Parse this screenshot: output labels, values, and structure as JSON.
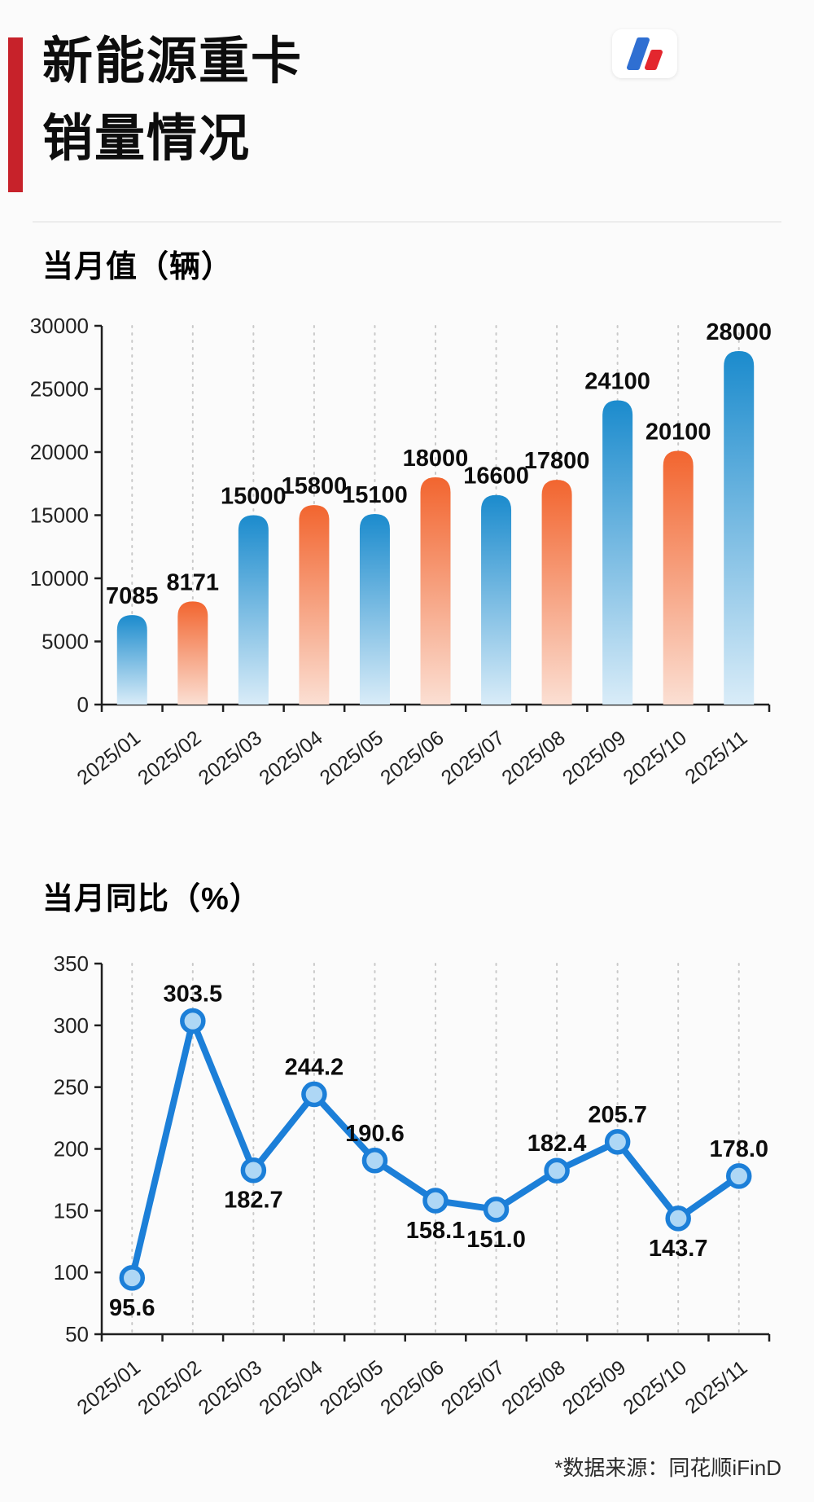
{
  "header": {
    "title_line1": "新能源重卡",
    "title_line2": "销量情况",
    "logo": "tonghuashun-ifind-logo"
  },
  "charts": {
    "bar_title": "当月值（辆）",
    "line_title": "当月同比（%）"
  },
  "footer": {
    "source": "*数据来源：同花顺iFinD"
  },
  "colors": {
    "accent_red": "#c7222a",
    "bar_blue_top": "#1b8bcd",
    "bar_blue_bottom": "#d9ecf8",
    "bar_orange_top": "#f2652f",
    "bar_orange_bottom": "#fbdfd3",
    "line_blue": "#1c7fd8",
    "marker_fill": "#aed7f5",
    "logo_blue": "#2f6fd2",
    "logo_red": "#e3272e"
  },
  "chart_data": [
    {
      "type": "bar",
      "title": "当月值（辆）",
      "categories": [
        "2025/01",
        "2025/02",
        "2025/03",
        "2025/04",
        "2025/05",
        "2025/06",
        "2025/07",
        "2025/08",
        "2025/09",
        "2025/10",
        "2025/11"
      ],
      "values": [
        7085,
        8171,
        15000,
        15800,
        15100,
        18000,
        16600,
        17800,
        24100,
        20100,
        28000
      ],
      "value_labels": [
        "7085",
        "8171",
        "15000",
        "15800",
        "15100",
        "18000",
        "16600",
        "17800",
        "24100",
        "20100",
        "28000"
      ],
      "ylim": [
        0,
        30000
      ],
      "yticks": [
        0,
        5000,
        10000,
        15000,
        20000,
        25000,
        30000
      ],
      "xlabel": "",
      "ylabel": "",
      "grid": "vertical-dotted",
      "legend": "none",
      "bar_color_pattern": [
        "blue",
        "orange"
      ]
    },
    {
      "type": "line",
      "title": "当月同比（%）",
      "categories": [
        "2025/01",
        "2025/02",
        "2025/03",
        "2025/04",
        "2025/05",
        "2025/06",
        "2025/07",
        "2025/08",
        "2025/09",
        "2025/10",
        "2025/11"
      ],
      "values": [
        95.6,
        303.5,
        182.7,
        244.2,
        190.6,
        158.1,
        151.0,
        182.4,
        205.7,
        143.7,
        178.0
      ],
      "value_labels": [
        "95.6",
        "303.5",
        "182.7",
        "244.2",
        "190.6",
        "158.1",
        "151.0",
        "182.4",
        "205.7",
        "143.7",
        "178.0"
      ],
      "label_side": [
        "below",
        "above",
        "below",
        "above",
        "above",
        "below",
        "below",
        "above",
        "above",
        "below",
        "above"
      ],
      "ylim": [
        50,
        350
      ],
      "yticks": [
        50,
        100,
        150,
        200,
        250,
        300,
        350
      ],
      "xlabel": "",
      "ylabel": "",
      "grid": "vertical-dotted",
      "legend": "none"
    }
  ]
}
